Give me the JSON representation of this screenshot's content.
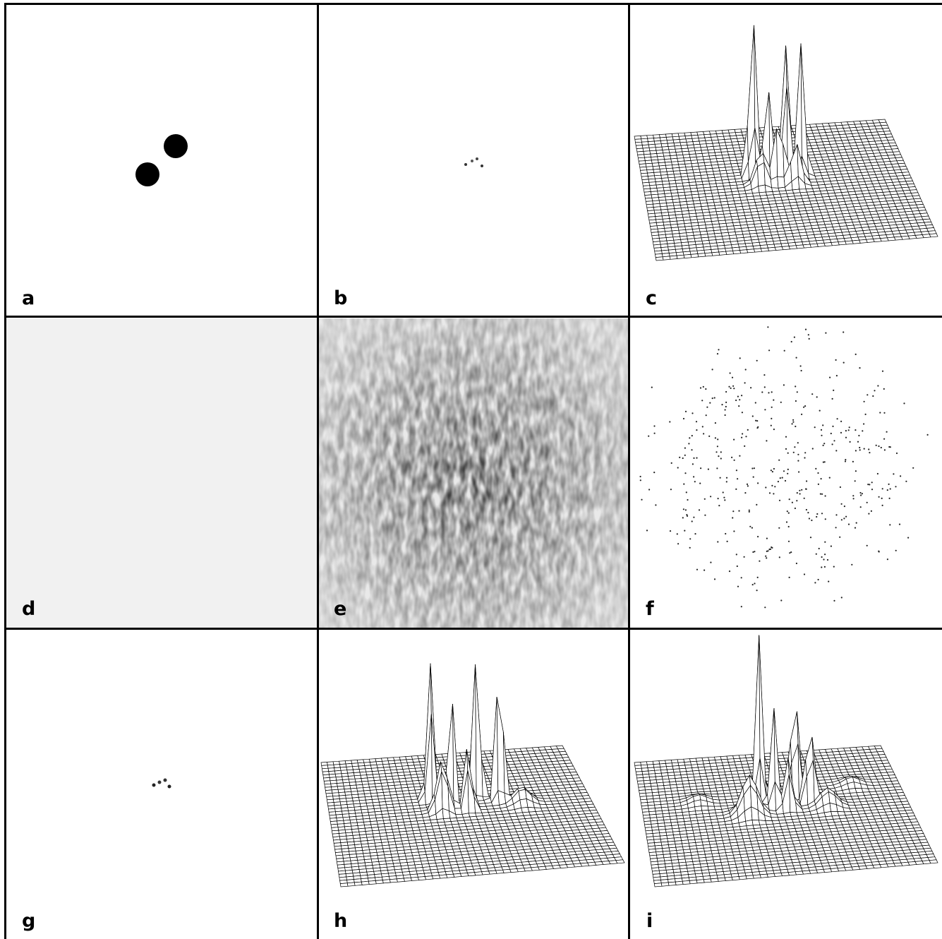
{
  "panels": [
    {
      "label": "a",
      "kind": "object-image"
    },
    {
      "label": "b",
      "kind": "autocorrelation-image"
    },
    {
      "label": "c",
      "kind": "surface-plot"
    },
    {
      "label": "d",
      "kind": "speckle-image-fringed"
    },
    {
      "label": "e",
      "kind": "speckle-image"
    },
    {
      "label": "f",
      "kind": "photon-events"
    },
    {
      "label": "g",
      "kind": "reconstruction-image"
    },
    {
      "label": "h",
      "kind": "surface-plot"
    },
    {
      "label": "i",
      "kind": "surface-plot"
    }
  ],
  "colors": {
    "background": "#ffffff",
    "ink": "#000000"
  }
}
